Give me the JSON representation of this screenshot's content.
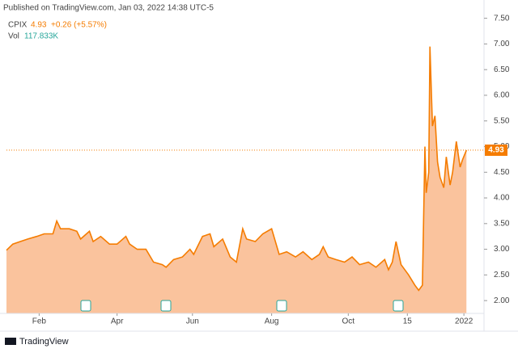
{
  "header": {
    "published": "Published on TradingView.com, Jan 03, 2022 14:38 UTC-5",
    "last": "4.93",
    "change": "+0.26 (+5.57%)",
    "volume_label": "Vol",
    "volume": "117.833K"
  },
  "footer": "TradingView",
  "chart_data": {
    "type": "area",
    "x": [
      0,
      5,
      11,
      17,
      24,
      30,
      37,
      40,
      43,
      50,
      56,
      59,
      66,
      69,
      75,
      82,
      88,
      95,
      98,
      104,
      111,
      117,
      124,
      127,
      133,
      140,
      146,
      149,
      156,
      162,
      165,
      172,
      178,
      183,
      188,
      191,
      198,
      204,
      211,
      217,
      223,
      230,
      236,
      243,
      249,
      252,
      256,
      262,
      269,
      275,
      281,
      288,
      294,
      301,
      304,
      307,
      310,
      314,
      320,
      325,
      328,
      331,
      333,
      334,
      336,
      337,
      339,
      341,
      343,
      345,
      348,
      350,
      353,
      355,
      358,
      361,
      363,
      366
    ],
    "series": [
      {
        "name": "CPIX",
        "color": "#f57c00",
        "fill": "#f9b98c",
        "values": [
          2.98,
          3.1,
          3.15,
          3.2,
          3.25,
          3.3,
          3.3,
          3.55,
          3.4,
          3.4,
          3.35,
          3.2,
          3.35,
          3.15,
          3.25,
          3.1,
          3.1,
          3.25,
          3.1,
          3.0,
          3.0,
          2.75,
          2.7,
          2.65,
          2.8,
          2.85,
          3.0,
          2.9,
          3.25,
          3.3,
          3.05,
          3.2,
          2.85,
          2.75,
          3.4,
          3.2,
          3.15,
          3.3,
          3.4,
          2.9,
          2.95,
          2.85,
          2.95,
          2.8,
          2.9,
          3.05,
          2.85,
          2.8,
          2.75,
          2.85,
          2.7,
          2.75,
          2.65,
          2.8,
          2.6,
          2.75,
          3.15,
          2.7,
          2.5,
          2.3,
          2.2,
          2.3,
          5.0,
          4.1,
          4.5,
          6.95,
          5.4,
          5.6,
          4.7,
          4.4,
          4.2,
          4.8,
          4.25,
          4.5,
          5.1,
          4.6,
          4.75,
          4.93
        ],
        "value_labels": {
          "77": "4.93"
        }
      }
    ],
    "xlim": [
      0,
      380
    ],
    "xticks": [
      {
        "value": 26,
        "label": "Feb"
      },
      {
        "value": 88,
        "label": "Apr"
      },
      {
        "value": 148,
        "label": "Jun"
      },
      {
        "value": 211,
        "label": "Aug"
      },
      {
        "value": 272,
        "label": "Oct"
      },
      {
        "value": 319,
        "label": "15"
      },
      {
        "value": 364,
        "label": "2022"
      }
    ],
    "ylim": [
      1.75,
      7.62
    ],
    "yticks": [
      {
        "value": 2,
        "label": "2.00"
      },
      {
        "value": 2.5,
        "label": "2.50"
      },
      {
        "value": 3,
        "label": "3.00"
      },
      {
        "value": 3.5,
        "label": "3.50"
      },
      {
        "value": 4,
        "label": "4.00"
      },
      {
        "value": 4.5,
        "label": "4.50"
      },
      {
        "value": 5,
        "label": "5.00"
      },
      {
        "value": 5.5,
        "label": "5.50"
      },
      {
        "value": 6,
        "label": "6.00"
      },
      {
        "value": 6.5,
        "label": "6.50"
      },
      {
        "value": 7,
        "label": "7.00"
      },
      {
        "value": 7.5,
        "label": "7.50"
      }
    ]
  }
}
